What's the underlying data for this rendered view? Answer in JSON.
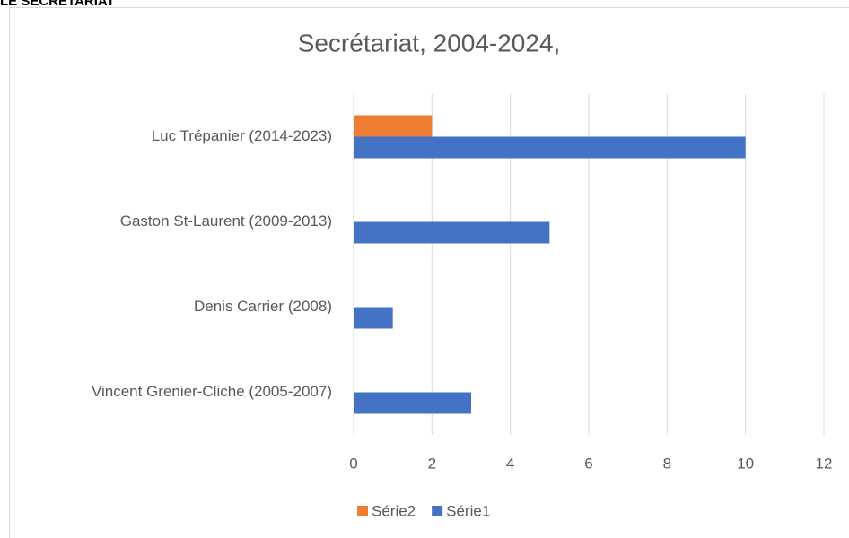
{
  "header": "LE SECRÉTARIAT",
  "chart_data": {
    "type": "bar",
    "orientation": "horizontal",
    "title": "Secrétariat, 2004-2024,",
    "categories": [
      "Vincent Grenier-Cliche (2005-2007)",
      "Denis Carrier (2008)",
      "Gaston St-Laurent (2009-2013)",
      "Luc Trépanier (2014-2023)"
    ],
    "series": [
      {
        "name": "Série1",
        "color": "#4472c4",
        "values": [
          3,
          1,
          5,
          10
        ]
      },
      {
        "name": "Série2",
        "color": "#ed7d31",
        "values": [
          null,
          null,
          null,
          2
        ]
      }
    ],
    "xlim": [
      0,
      12
    ],
    "xticks": [
      0,
      2,
      4,
      6,
      8,
      10,
      12
    ],
    "grid": true,
    "legend": "bottom"
  }
}
